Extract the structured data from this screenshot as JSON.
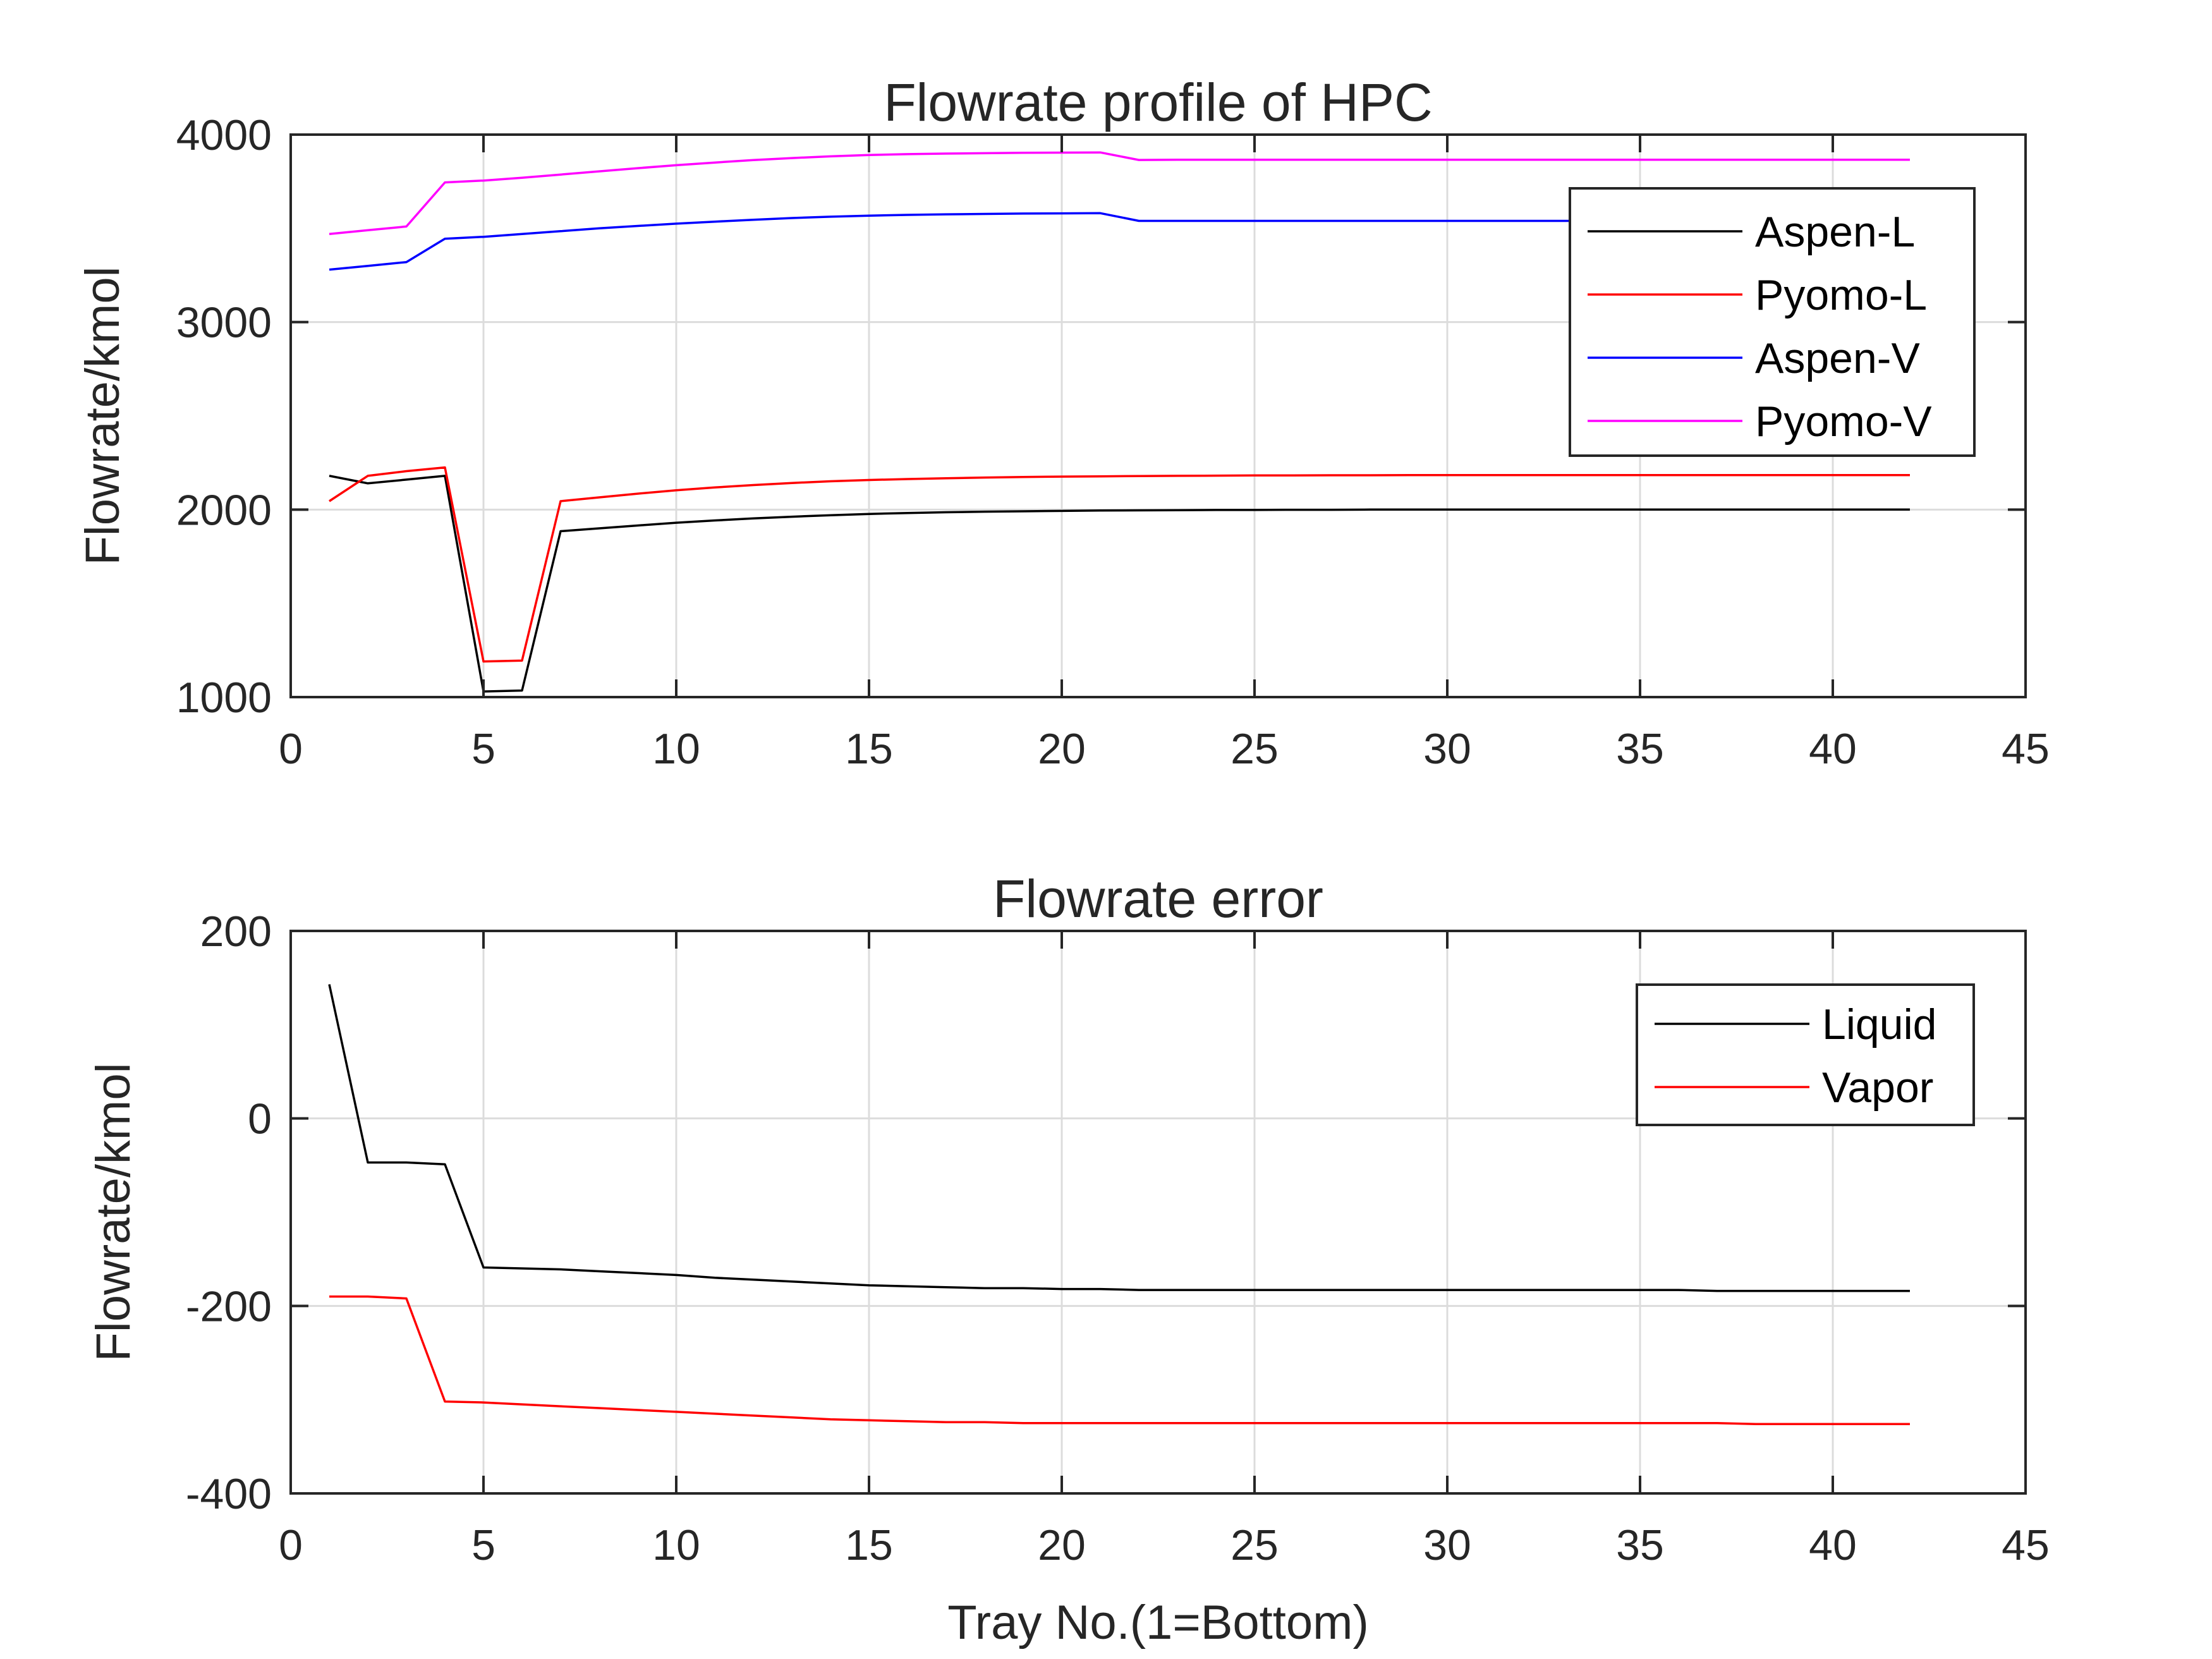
{
  "chart_data": [
    {
      "type": "line",
      "title": "Flowrate profile of HPC",
      "xlabel": "",
      "ylabel": "Flowrate/kmol",
      "xlim": [
        0,
        45
      ],
      "ylim": [
        1000,
        4000
      ],
      "xticks": [
        0,
        5,
        10,
        15,
        20,
        25,
        30,
        35,
        40,
        45
      ],
      "yticks": [
        1000,
        2000,
        3000,
        4000
      ],
      "grid": true,
      "legend_position": "top-right",
      "series": [
        {
          "name": "Aspen-L",
          "color": "#000000",
          "x": [
            1,
            2,
            3,
            4,
            5,
            6,
            7,
            8,
            9,
            10,
            11,
            12,
            13,
            14,
            15,
            16,
            17,
            18,
            19,
            20,
            21,
            22,
            23,
            24,
            25,
            26,
            27,
            28,
            29,
            30,
            31,
            32,
            33,
            34,
            35,
            36,
            37,
            38,
            39,
            40,
            41,
            42
          ],
          "y": [
            2180,
            2140,
            2160,
            2180,
            1030,
            1035,
            1885,
            1900,
            1915,
            1930,
            1942,
            1953,
            1962,
            1970,
            1977,
            1982,
            1986,
            1989,
            1991,
            1993,
            1995,
            1996,
            1997,
            1998,
            1998,
            1999,
            1999,
            2000,
            2000,
            2000,
            2000,
            2000,
            2000,
            2000,
            2000,
            2000,
            2000,
            2000,
            2000,
            2000,
            2000,
            2000
          ]
        },
        {
          "name": "Pyomo-L",
          "color": "#ff0000",
          "x": [
            1,
            2,
            3,
            4,
            5,
            6,
            7,
            8,
            9,
            10,
            11,
            12,
            13,
            14,
            15,
            16,
            17,
            18,
            19,
            20,
            21,
            22,
            23,
            24,
            25,
            26,
            27,
            28,
            29,
            30,
            31,
            32,
            33,
            34,
            35,
            36,
            37,
            38,
            39,
            40,
            41,
            42
          ],
          "y": [
            2045,
            2180,
            2205,
            2225,
            1190,
            1195,
            2045,
            2065,
            2085,
            2103,
            2118,
            2131,
            2142,
            2151,
            2158,
            2163,
            2167,
            2171,
            2174,
            2176,
            2177,
            2179,
            2180,
            2181,
            2182,
            2182,
            2183,
            2183,
            2184,
            2184,
            2184,
            2184,
            2184,
            2184,
            2184,
            2184,
            2184,
            2184,
            2184,
            2184,
            2184,
            2184
          ]
        },
        {
          "name": "Aspen-V",
          "color": "#0000ff",
          "x": [
            1,
            2,
            3,
            4,
            5,
            6,
            7,
            8,
            9,
            10,
            11,
            12,
            13,
            14,
            15,
            16,
            17,
            18,
            19,
            20,
            21,
            22,
            23,
            24,
            25,
            26,
            27,
            28,
            29,
            30,
            31,
            32,
            33,
            34,
            35,
            36,
            37,
            38,
            39,
            40,
            41,
            42
          ],
          "y": [
            3280,
            3300,
            3320,
            3445,
            3455,
            3470,
            3485,
            3500,
            3513,
            3525,
            3536,
            3546,
            3555,
            3562,
            3568,
            3572,
            3575,
            3577,
            3579,
            3580,
            3581,
            3540,
            3540,
            3540,
            3540,
            3540,
            3540,
            3540,
            3540,
            3540,
            3540,
            3540,
            3540,
            3540,
            3540,
            3540,
            3540,
            3540,
            3540,
            3540,
            3540,
            3540
          ]
        },
        {
          "name": "Pyomo-V",
          "color": "#ff00ff",
          "x": [
            1,
            2,
            3,
            4,
            5,
            6,
            7,
            8,
            9,
            10,
            11,
            12,
            13,
            14,
            15,
            16,
            17,
            18,
            19,
            20,
            21,
            22,
            23,
            24,
            25,
            26,
            27,
            28,
            29,
            30,
            31,
            32,
            33,
            34,
            35,
            36,
            37,
            38,
            39,
            40,
            41,
            42
          ],
          "y": [
            3470,
            3490,
            3510,
            3745,
            3755,
            3770,
            3787,
            3804,
            3821,
            3837,
            3851,
            3864,
            3875,
            3884,
            3891,
            3896,
            3899,
            3901,
            3903,
            3904,
            3905,
            3865,
            3866,
            3866,
            3866,
            3866,
            3866,
            3866,
            3866,
            3866,
            3866,
            3866,
            3866,
            3866,
            3866,
            3866,
            3866,
            3866,
            3866,
            3866,
            3866,
            3866
          ]
        }
      ]
    },
    {
      "type": "line",
      "title": "Flowrate error",
      "xlabel": "Tray No.(1=Bottom)",
      "ylabel": "Flowrate/kmol",
      "xlim": [
        0,
        45
      ],
      "ylim": [
        -400,
        200
      ],
      "xticks": [
        0,
        5,
        10,
        15,
        20,
        25,
        30,
        35,
        40,
        45
      ],
      "yticks": [
        -400,
        -200,
        0,
        200
      ],
      "grid": true,
      "legend_position": "top-right",
      "series": [
        {
          "name": "Liquid",
          "color": "#000000",
          "x": [
            1,
            2,
            3,
            4,
            5,
            6,
            7,
            8,
            9,
            10,
            11,
            12,
            13,
            14,
            15,
            16,
            17,
            18,
            19,
            20,
            21,
            22,
            23,
            24,
            25,
            26,
            27,
            28,
            29,
            30,
            31,
            32,
            33,
            34,
            35,
            36,
            37,
            38,
            39,
            40,
            41,
            42
          ],
          "y": [
            143,
            -47,
            -47,
            -49,
            -159,
            -160,
            -161,
            -163,
            -165,
            -167,
            -170,
            -172,
            -174,
            -176,
            -178,
            -179,
            -180,
            -181,
            -181,
            -182,
            -182,
            -183,
            -183,
            -183,
            -183,
            -183,
            -183,
            -183,
            -183,
            -183,
            -183,
            -183,
            -183,
            -183,
            -183,
            -183,
            -184,
            -184,
            -184,
            -184,
            -184,
            -184
          ]
        },
        {
          "name": "Vapor",
          "color": "#ff0000",
          "x": [
            1,
            2,
            3,
            4,
            5,
            6,
            7,
            8,
            9,
            10,
            11,
            12,
            13,
            14,
            15,
            16,
            17,
            18,
            19,
            20,
            21,
            22,
            23,
            24,
            25,
            26,
            27,
            28,
            29,
            30,
            31,
            32,
            33,
            34,
            35,
            36,
            37,
            38,
            39,
            40,
            41,
            42
          ],
          "y": [
            -190,
            -190,
            -192,
            -302,
            -303,
            -305,
            -307,
            -309,
            -311,
            -313,
            -315,
            -317,
            -319,
            -321,
            -322,
            -323,
            -324,
            -324,
            -325,
            -325,
            -325,
            -325,
            -325,
            -325,
            -325,
            -325,
            -325,
            -325,
            -325,
            -325,
            -325,
            -325,
            -325,
            -325,
            -325,
            -325,
            -325,
            -326,
            -326,
            -326,
            -326,
            -326
          ]
        }
      ]
    }
  ]
}
